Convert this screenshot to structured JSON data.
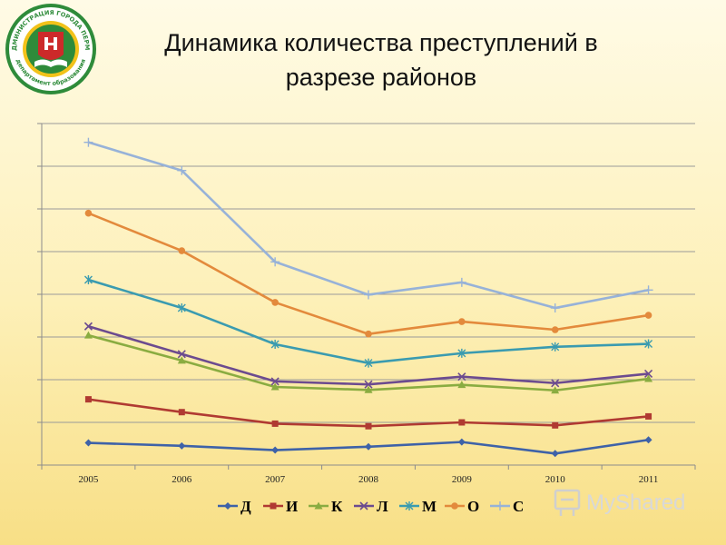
{
  "title_line1": "Динамика количества преступлений  в",
  "title_line2": "разрезе  районов",
  "logo": {
    "text_top": "АДМИНИСТРАЦИЯ ГОРОДА ПЕРМИ",
    "text_bottom": "департамент образования",
    "colors": {
      "ring": "#2e8b3a",
      "inner": "#f2c21a",
      "field": "#cc2a2a"
    }
  },
  "watermark": {
    "text": "MyShared"
  },
  "chart_data": {
    "type": "line",
    "categories": [
      "2005",
      "2006",
      "2007",
      "2008",
      "2009",
      "2010",
      "2011"
    ],
    "ylim": [
      0,
      8
    ],
    "grid": true,
    "legend_position": "bottom",
    "series": [
      {
        "name": "Д",
        "color": "#3e62a8",
        "marker": "diamond",
        "values": [
          0.52,
          0.45,
          0.35,
          0.43,
          0.54,
          0.27,
          0.59
        ]
      },
      {
        "name": "И",
        "color": "#b03a32",
        "marker": "square",
        "values": [
          1.54,
          1.24,
          0.97,
          0.91,
          1.0,
          0.93,
          1.14
        ]
      },
      {
        "name": "К",
        "color": "#8aac41",
        "marker": "triangle",
        "values": [
          3.04,
          2.45,
          1.83,
          1.76,
          1.88,
          1.75,
          2.02
        ]
      },
      {
        "name": "Л",
        "color": "#6c4b8f",
        "marker": "x",
        "values": [
          3.25,
          2.6,
          1.96,
          1.89,
          2.07,
          1.92,
          2.14
        ]
      },
      {
        "name": "М",
        "color": "#3a9bb0",
        "marker": "star",
        "values": [
          4.34,
          3.68,
          2.83,
          2.39,
          2.62,
          2.77,
          2.84
        ]
      },
      {
        "name": "О",
        "color": "#e38a3c",
        "marker": "circle",
        "values": [
          5.9,
          5.02,
          3.81,
          3.07,
          3.36,
          3.17,
          3.51
        ]
      },
      {
        "name": "С",
        "color": "#97b2d8",
        "marker": "plus",
        "values": [
          7.56,
          6.9,
          4.76,
          3.99,
          4.28,
          3.68,
          4.1
        ]
      }
    ]
  }
}
